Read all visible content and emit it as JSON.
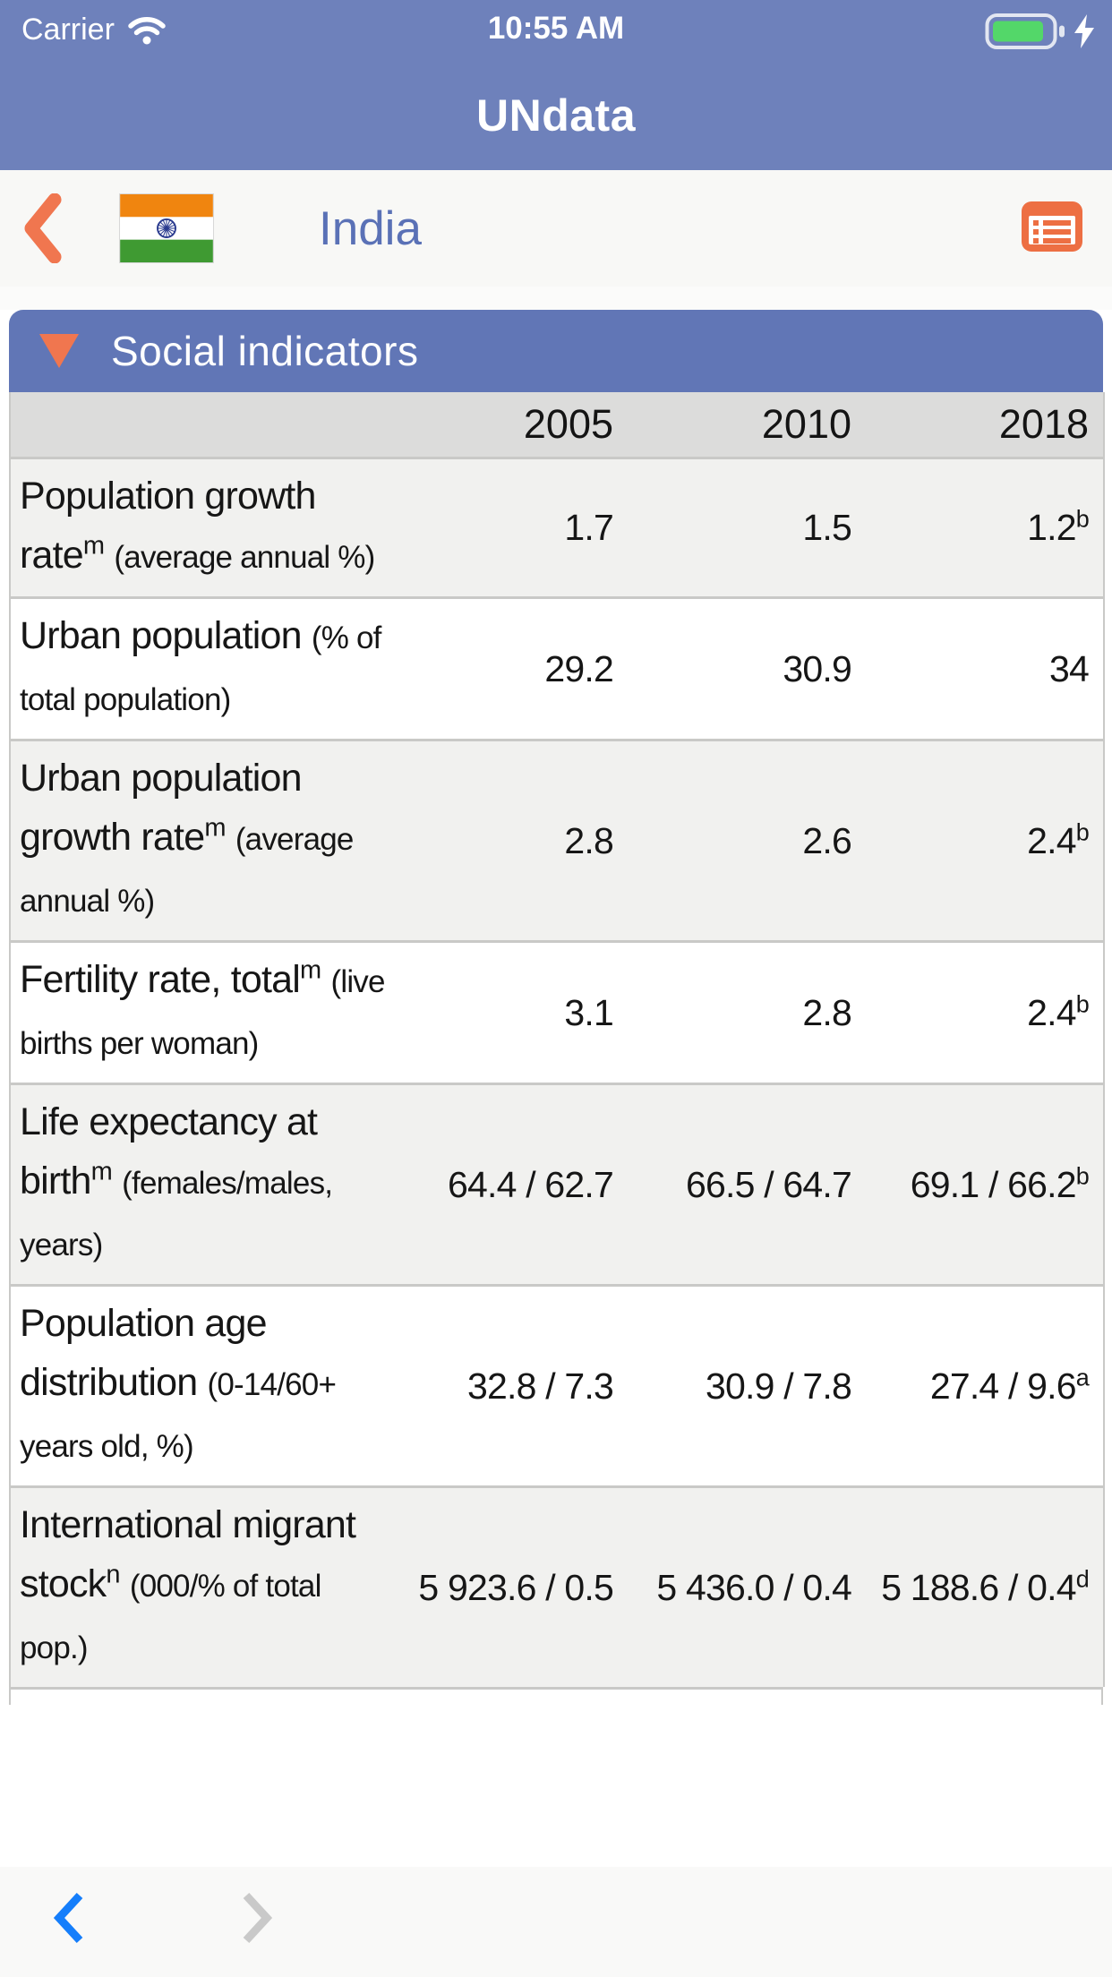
{
  "status_bar": {
    "carrier": "Carrier",
    "time": "10:55 AM"
  },
  "header": {
    "app_title": "UNdata"
  },
  "nav": {
    "country": "India"
  },
  "section": {
    "title": "Social indicators"
  },
  "colors": {
    "header_blue": "#6e81bb",
    "section_blue": "#6176b6",
    "accent_orange": "#f0764f",
    "country_text_blue": "#5a71b6",
    "battery_green": "#53d769",
    "toolbar_active_blue": "#157efb",
    "toolbar_inactive_gray": "#c9c9c9"
  },
  "table": {
    "years": [
      "2005",
      "2010",
      "2018"
    ],
    "rows": [
      {
        "name": "Population growth rate",
        "name_sup": "m",
        "unit": "(average annual %)",
        "values": [
          {
            "text": "1.7",
            "sup": ""
          },
          {
            "text": "1.5",
            "sup": ""
          },
          {
            "text": "1.2",
            "sup": "b"
          }
        ]
      },
      {
        "name": "Urban population",
        "name_sup": "",
        "unit": "(% of total population)",
        "values": [
          {
            "text": "29.2",
            "sup": ""
          },
          {
            "text": "30.9",
            "sup": ""
          },
          {
            "text": "34",
            "sup": ""
          }
        ]
      },
      {
        "name": "Urban population growth rate",
        "name_sup": "m",
        "unit": "(average annual %)",
        "values": [
          {
            "text": "2.8",
            "sup": ""
          },
          {
            "text": "2.6",
            "sup": ""
          },
          {
            "text": "2.4",
            "sup": "b"
          }
        ]
      },
      {
        "name": "Fertility rate, total",
        "name_sup": "m",
        "unit": "(live births per woman)",
        "values": [
          {
            "text": "3.1",
            "sup": ""
          },
          {
            "text": "2.8",
            "sup": ""
          },
          {
            "text": "2.4",
            "sup": "b"
          }
        ]
      },
      {
        "name": "Life expectancy at birth",
        "name_sup": "m",
        "unit": "(females/males, years)",
        "values": [
          {
            "text": "64.4 / 62.7",
            "sup": ""
          },
          {
            "text": "66.5 / 64.7",
            "sup": ""
          },
          {
            "text": "69.1 / 66.2",
            "sup": "b"
          }
        ]
      },
      {
        "name": "Population age distribution",
        "name_sup": "",
        "unit": "(0-14/60+ years old, %)",
        "values": [
          {
            "text": "32.8 / 7.3",
            "sup": ""
          },
          {
            "text": "30.9 / 7.8",
            "sup": ""
          },
          {
            "text": "27.4 / 9.6",
            "sup": "a"
          }
        ]
      },
      {
        "name": "International migrant stock",
        "name_sup": "n",
        "unit": "(000/% of total pop.)",
        "values": [
          {
            "text": "5 923.6 / 0.5",
            "sup": ""
          },
          {
            "text": "5 436.0 / 0.4",
            "sup": ""
          },
          {
            "text": "5 188.6 / 0.4",
            "sup": "d"
          }
        ]
      }
    ]
  },
  "toolbar": {
    "back": "previous-page",
    "forward": "next-page"
  }
}
